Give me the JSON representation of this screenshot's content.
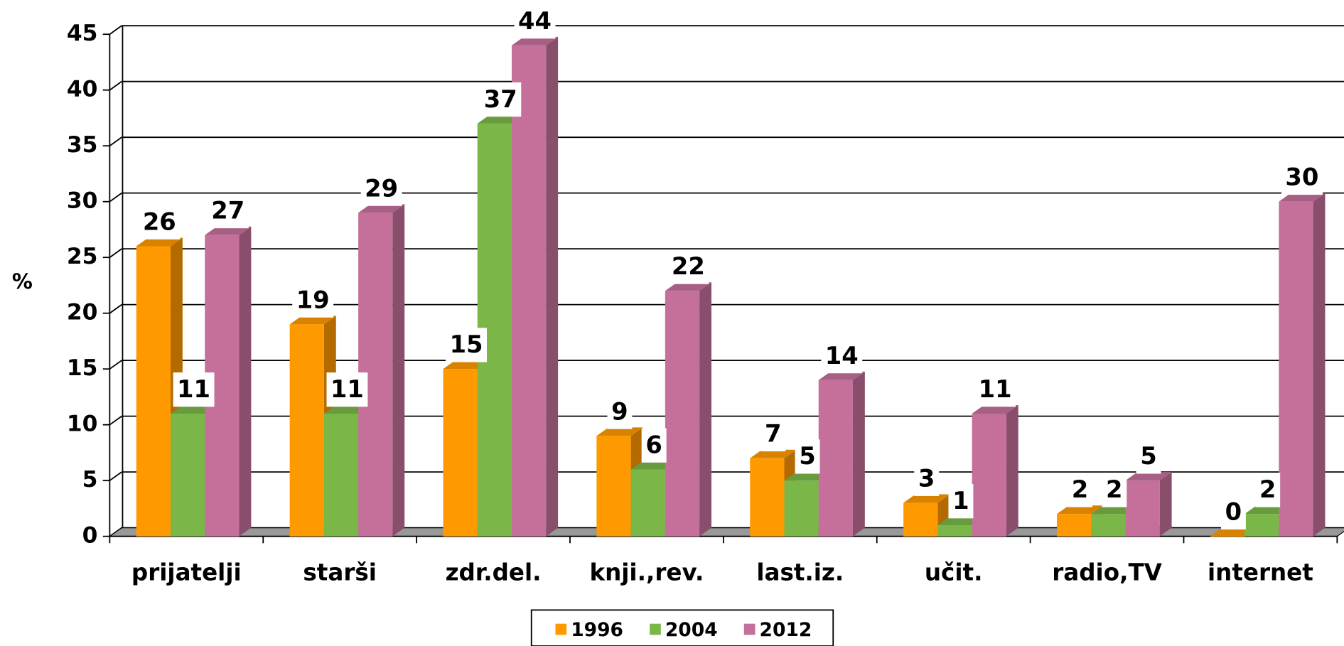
{
  "chart_data": {
    "type": "bar",
    "ylabel": "%",
    "categories": [
      "prijatelji",
      "starši",
      "zdr.del.",
      "knji.,rev.",
      "last.iz.",
      "učit.",
      "radio,TV",
      "internet"
    ],
    "series": [
      {
        "name": "1996",
        "color": "#FF9900",
        "values": [
          26,
          19,
          15,
          9,
          7,
          3,
          2,
          0
        ]
      },
      {
        "name": "2004",
        "color": "#7AB648",
        "values": [
          11,
          11,
          37,
          6,
          5,
          1,
          2,
          2
        ]
      },
      {
        "name": "2012",
        "color": "#C4709A",
        "values": [
          27,
          29,
          44,
          22,
          14,
          11,
          5,
          30
        ]
      }
    ],
    "ylim": [
      0,
      45
    ],
    "yticks": [
      0,
      5,
      10,
      15,
      20,
      25,
      30,
      35,
      40,
      45
    ],
    "grid": true,
    "legend": "bottom"
  }
}
